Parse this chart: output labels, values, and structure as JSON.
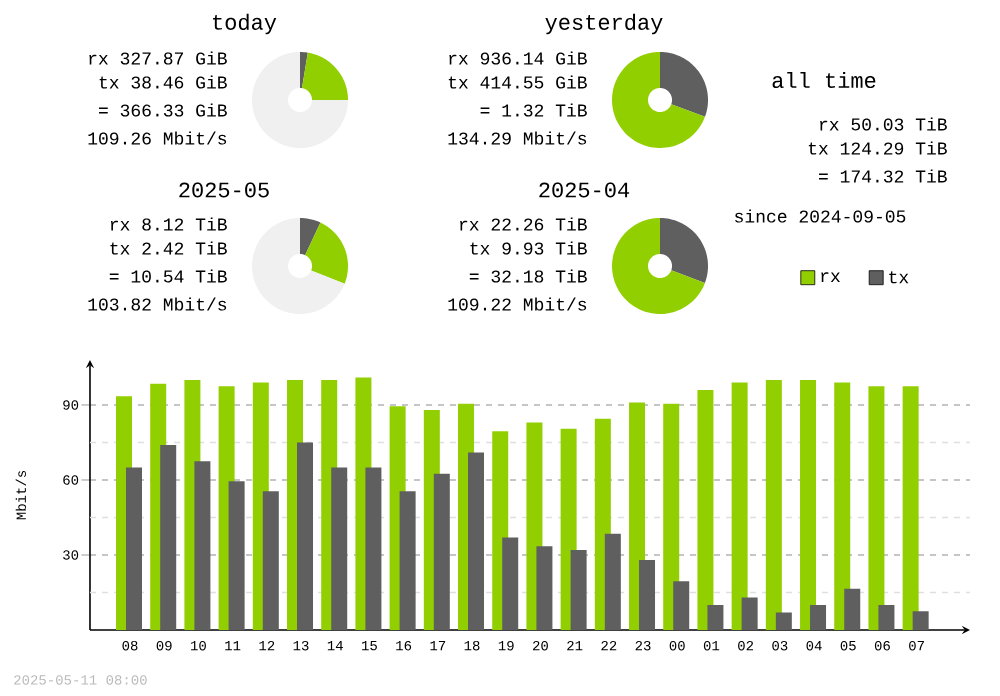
{
  "chart_data": [
    {
      "type": "donut",
      "title": "today",
      "categories": [
        null,
        null,
        null
      ],
      "values": [
        2.6,
        22.4,
        75
      ],
      "colors": [
        "#5f5f5f",
        "#92cf00",
        "#f0f0f0"
      ],
      "annotations": [
        "rx 327.87 GiB",
        "tx 38.46 GiB",
        "= 366.33 GiB",
        "109.26 Mbit/s"
      ]
    },
    {
      "type": "donut",
      "title": "yesterday",
      "categories": [
        null,
        null
      ],
      "values": [
        30.7,
        69.3
      ],
      "colors": [
        "#5f5f5f",
        "#92cf00"
      ],
      "annotations": [
        "rx 936.14 GiB",
        "tx 414.55 GiB",
        "= 1.32 TiB",
        "134.29 Mbit/s"
      ]
    },
    {
      "type": "other",
      "title": "all time",
      "annotations": [
        "rx 50.03 TiB",
        "tx 124.29 TiB",
        "= 174.32 TiB",
        "since 2024-09-05"
      ]
    },
    {
      "type": "donut",
      "title": "2025-05",
      "categories": [
        null,
        null,
        null
      ],
      "values": [
        7,
        24,
        69
      ],
      "colors": [
        "#5f5f5f",
        "#92cf00",
        "#f0f0f0"
      ],
      "annotations": [
        "rx 8.12 TiB",
        "tx 2.42 TiB",
        "= 10.54 TiB",
        "103.82 Mbit/s"
      ]
    },
    {
      "type": "donut",
      "title": "2025-04",
      "categories": [
        null,
        null
      ],
      "values": [
        30.8,
        69.2
      ],
      "colors": [
        "#5f5f5f",
        "#92cf00"
      ],
      "annotations": [
        "rx 22.26 TiB",
        "tx 9.93 TiB",
        "= 32.18 TiB",
        "109.22 Mbit/s"
      ]
    },
    {
      "type": "bar",
      "categories": [
        "08",
        "09",
        "10",
        "11",
        "12",
        "13",
        "14",
        "15",
        "16",
        "17",
        "18",
        "19",
        "20",
        "21",
        "22",
        "23",
        "00",
        "01",
        "02",
        "03",
        "04",
        "05",
        "06",
        "07"
      ],
      "series": [
        {
          "name": "rx",
          "color": "#92cf00",
          "values": [
            93.5,
            98.5,
            100,
            97.5,
            99,
            100,
            100,
            101,
            89.5,
            88,
            90.5,
            79.5,
            83,
            80.5,
            84.5,
            91,
            90.5,
            96,
            99,
            100,
            100,
            99,
            97.5,
            97.5
          ]
        },
        {
          "name": "tx",
          "color": "#5f5f5f",
          "values": [
            65,
            74,
            67.5,
            59.5,
            55.5,
            75,
            65,
            65,
            55.5,
            62.5,
            71,
            37,
            33.5,
            32,
            38.5,
            28,
            19.5,
            10,
            13,
            7,
            10,
            16.5,
            10,
            7.5
          ]
        }
      ],
      "ylim": [
        0,
        108
      ],
      "yticks": [
        {
          "value": 15,
          "label": null
        },
        30,
        {
          "value": 45,
          "label": null
        },
        60,
        {
          "value": 75,
          "label": null
        },
        90
      ],
      "ylabel": "Mbit/s",
      "grid": "y",
      "legend": "top right",
      "annotations": [
        "2025-05-11 08:00"
      ]
    }
  ]
}
